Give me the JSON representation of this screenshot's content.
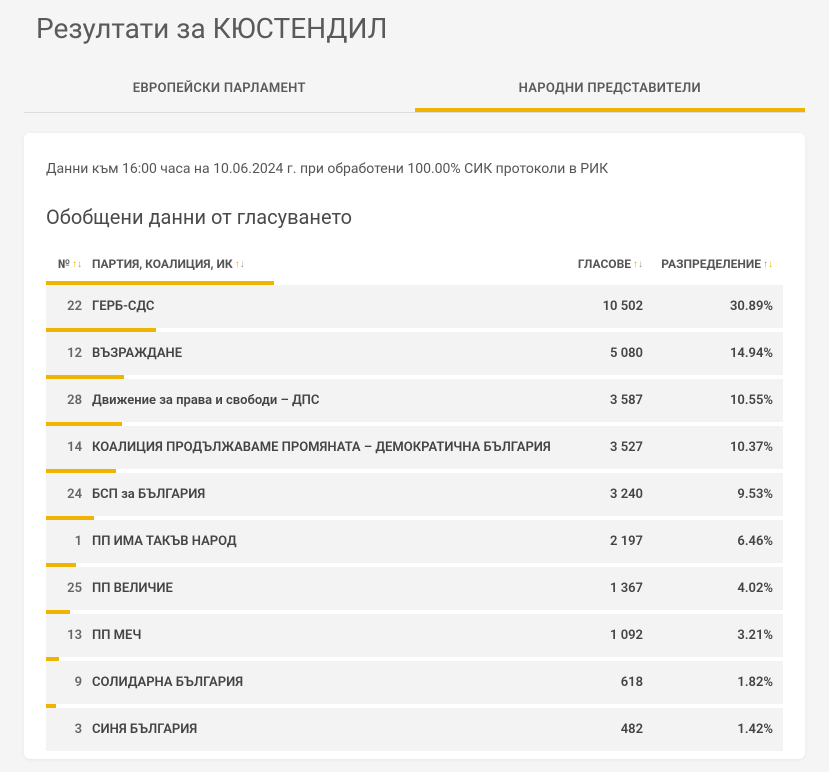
{
  "page_title": "Резултати за КЮСТЕНДИЛ",
  "tabs": {
    "ep": "ЕВРОПЕЙСКИ ПАРЛАМЕНТ",
    "np": "НАРОДНИ ПРЕДСТАВИТЕЛИ"
  },
  "status": "Данни към 16:00 часа на 10.06.2024 г. при обработени 100.00% СИК протоколи в РИК",
  "subtitle": "Обобщени данни от гласуването",
  "headers": {
    "num": "№",
    "party": "ПАРТИЯ, КОАЛИЦИЯ, ИК",
    "votes": "ГЛАСОВЕ",
    "dist": "РАЗПРЕДЕЛЕНИЕ"
  },
  "colors": {
    "accent": "#f0b400",
    "row_bg": "#f3f3f3",
    "card_bg": "#ffffff",
    "page_bg": "#f5f5f5"
  },
  "rows": [
    {
      "num": "22",
      "party": "ГЕРБ-СДС",
      "votes": "10 502",
      "dist": "30.89%",
      "bar_pct": 30.89
    },
    {
      "num": "12",
      "party": "ВЪЗРАЖДАНЕ",
      "votes": "5 080",
      "dist": "14.94%",
      "bar_pct": 14.94
    },
    {
      "num": "28",
      "party": "Движение за права и свободи – ДПС",
      "votes": "3 587",
      "dist": "10.55%",
      "bar_pct": 10.55
    },
    {
      "num": "14",
      "party": "КОАЛИЦИЯ ПРОДЪЛЖАВАМЕ ПРОМЯНАТА – ДЕМОКРАТИЧНА БЪЛГАРИЯ",
      "votes": "3 527",
      "dist": "10.37%",
      "bar_pct": 10.37
    },
    {
      "num": "24",
      "party": "БСП за БЪЛГАРИЯ",
      "votes": "3 240",
      "dist": "9.53%",
      "bar_pct": 9.53
    },
    {
      "num": "1",
      "party": "ПП ИМА ТАКЪВ НАРОД",
      "votes": "2 197",
      "dist": "6.46%",
      "bar_pct": 6.46
    },
    {
      "num": "25",
      "party": "ПП ВЕЛИЧИЕ",
      "votes": "1 367",
      "dist": "4.02%",
      "bar_pct": 4.02
    },
    {
      "num": "13",
      "party": "ПП МЕЧ",
      "votes": "1 092",
      "dist": "3.21%",
      "bar_pct": 3.21
    },
    {
      "num": "9",
      "party": "СОЛИДАРНА БЪЛГАРИЯ",
      "votes": "618",
      "dist": "1.82%",
      "bar_pct": 1.82
    },
    {
      "num": "3",
      "party": "СИНЯ БЪЛГАРИЯ",
      "votes": "482",
      "dist": "1.42%",
      "bar_pct": 1.42
    }
  ]
}
